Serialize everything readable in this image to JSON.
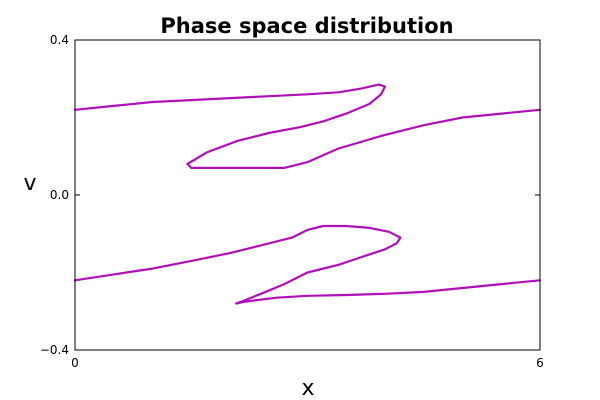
{
  "chart_data": {
    "type": "line",
    "title": "Phase space distribution",
    "xlabel": "x",
    "ylabel": "v",
    "xlim": [
      0,
      6
    ],
    "ylim": [
      -0.4,
      0.4
    ],
    "x_ticks": [
      0,
      6
    ],
    "x_tick_labels": [
      "0",
      "6"
    ],
    "y_ticks": [
      -0.4,
      0.0,
      0.4
    ],
    "y_tick_labels": [
      "−0.4",
      "0.0",
      "0.4"
    ],
    "grid": false,
    "legend": "none",
    "color": "#b010b8",
    "series": [
      {
        "x": [
          0.0,
          0.5,
          1.0,
          1.5,
          2.0,
          2.5,
          3.0,
          3.4,
          3.7,
          3.92,
          4.0,
          3.95,
          3.8,
          3.5,
          3.2,
          2.9,
          2.5,
          2.1,
          1.7,
          1.45,
          1.5,
          1.8,
          2.2,
          2.7,
          3.0,
          3.4,
          4.0,
          4.5,
          5.0,
          5.5,
          6.0
        ],
        "y": [
          0.22,
          0.23,
          0.24,
          0.245,
          0.25,
          0.255,
          0.26,
          0.265,
          0.275,
          0.285,
          0.28,
          0.26,
          0.235,
          0.21,
          0.19,
          0.175,
          0.16,
          0.14,
          0.11,
          0.08,
          0.07,
          0.07,
          0.07,
          0.07,
          0.085,
          0.12,
          0.155,
          0.18,
          0.2,
          0.21,
          0.22
        ]
      },
      {
        "x": [
          0.0,
          0.5,
          1.0,
          1.5,
          2.0,
          2.5,
          2.8,
          3.0,
          3.2,
          3.5,
          3.8,
          4.05,
          4.2,
          4.15,
          4.0,
          3.7,
          3.4,
          3.0,
          2.7,
          2.4,
          2.15,
          2.08,
          2.2,
          2.6,
          3.0,
          3.5,
          4.0,
          4.5,
          5.0,
          5.5,
          6.0
        ],
        "y": [
          -0.22,
          -0.205,
          -0.19,
          -0.17,
          -0.15,
          -0.125,
          -0.11,
          -0.09,
          -0.08,
          -0.08,
          -0.085,
          -0.095,
          -0.11,
          -0.125,
          -0.14,
          -0.16,
          -0.18,
          -0.2,
          -0.23,
          -0.255,
          -0.275,
          -0.28,
          -0.275,
          -0.265,
          -0.26,
          -0.258,
          -0.255,
          -0.25,
          -0.24,
          -0.23,
          -0.22
        ]
      }
    ]
  }
}
